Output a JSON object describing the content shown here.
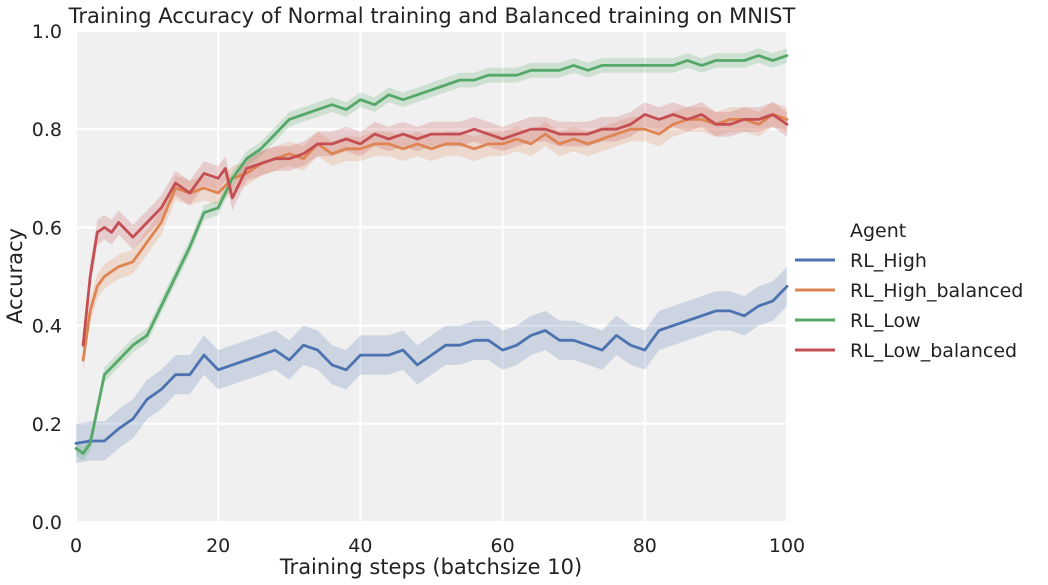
{
  "chart_data": {
    "type": "line",
    "title": "Training Accuracy of Normal training and Balanced training on MNIST",
    "xlabel": "Training steps (batchsize 10)",
    "ylabel": "Accuracy",
    "xlim": [
      0,
      100
    ],
    "ylim": [
      0,
      1
    ],
    "xticks": [
      "0",
      "20",
      "40",
      "60",
      "80",
      "100"
    ],
    "yticks": [
      "0.0",
      "0.2",
      "0.4",
      "0.6",
      "0.8",
      "1.0"
    ],
    "grid": true,
    "legend": {
      "title": "Agent",
      "placement": "outside-right"
    },
    "series": [
      {
        "name": "RL_High",
        "color": "#4c72b0",
        "x": [
          0,
          2,
          4,
          6,
          8,
          10,
          12,
          14,
          16,
          18,
          20,
          22,
          24,
          26,
          28,
          30,
          32,
          34,
          36,
          38,
          40,
          42,
          44,
          46,
          48,
          50,
          52,
          54,
          56,
          58,
          60,
          62,
          64,
          66,
          68,
          70,
          72,
          74,
          76,
          78,
          80,
          82,
          84,
          86,
          88,
          90,
          92,
          94,
          96,
          98,
          100
        ],
        "y": [
          0.16,
          0.165,
          0.165,
          0.19,
          0.21,
          0.25,
          0.27,
          0.3,
          0.3,
          0.34,
          0.31,
          0.32,
          0.33,
          0.34,
          0.35,
          0.33,
          0.36,
          0.35,
          0.32,
          0.31,
          0.34,
          0.34,
          0.34,
          0.35,
          0.32,
          0.34,
          0.36,
          0.36,
          0.37,
          0.37,
          0.35,
          0.36,
          0.38,
          0.39,
          0.37,
          0.37,
          0.36,
          0.35,
          0.38,
          0.36,
          0.35,
          0.39,
          0.4,
          0.41,
          0.42,
          0.43,
          0.43,
          0.42,
          0.44,
          0.45,
          0.48
        ],
        "ci": 0.04
      },
      {
        "name": "RL_High_balanced",
        "color": "#dd8452",
        "x": [
          1,
          2,
          3,
          4,
          6,
          8,
          10,
          12,
          14,
          16,
          18,
          20,
          22,
          24,
          26,
          28,
          30,
          32,
          34,
          36,
          38,
          40,
          42,
          44,
          46,
          48,
          50,
          52,
          54,
          56,
          58,
          60,
          62,
          64,
          66,
          68,
          70,
          72,
          74,
          76,
          78,
          80,
          82,
          84,
          86,
          88,
          90,
          92,
          94,
          96,
          98,
          100
        ],
        "y": [
          0.33,
          0.43,
          0.48,
          0.5,
          0.52,
          0.53,
          0.57,
          0.61,
          0.68,
          0.67,
          0.68,
          0.67,
          0.7,
          0.71,
          0.73,
          0.74,
          0.75,
          0.74,
          0.77,
          0.75,
          0.76,
          0.76,
          0.77,
          0.77,
          0.76,
          0.77,
          0.76,
          0.77,
          0.77,
          0.76,
          0.77,
          0.77,
          0.78,
          0.77,
          0.79,
          0.77,
          0.78,
          0.77,
          0.78,
          0.79,
          0.8,
          0.8,
          0.79,
          0.81,
          0.82,
          0.82,
          0.81,
          0.82,
          0.82,
          0.81,
          0.83,
          0.82
        ],
        "ci": 0.025
      },
      {
        "name": "RL_Low",
        "color": "#55a868",
        "x": [
          0,
          1,
          2,
          4,
          6,
          8,
          10,
          12,
          14,
          16,
          18,
          20,
          22,
          24,
          26,
          28,
          30,
          32,
          34,
          36,
          38,
          40,
          42,
          44,
          46,
          48,
          50,
          52,
          54,
          56,
          58,
          60,
          62,
          64,
          66,
          68,
          70,
          72,
          74,
          76,
          78,
          80,
          82,
          84,
          86,
          88,
          90,
          92,
          94,
          96,
          98,
          100
        ],
        "y": [
          0.15,
          0.14,
          0.16,
          0.3,
          0.33,
          0.36,
          0.38,
          0.44,
          0.5,
          0.56,
          0.63,
          0.64,
          0.7,
          0.74,
          0.76,
          0.79,
          0.82,
          0.83,
          0.84,
          0.85,
          0.84,
          0.86,
          0.85,
          0.87,
          0.86,
          0.87,
          0.88,
          0.89,
          0.9,
          0.9,
          0.91,
          0.91,
          0.91,
          0.92,
          0.92,
          0.92,
          0.93,
          0.92,
          0.93,
          0.93,
          0.93,
          0.93,
          0.93,
          0.93,
          0.94,
          0.93,
          0.94,
          0.94,
          0.94,
          0.95,
          0.94,
          0.95
        ],
        "ci": 0.015
      },
      {
        "name": "RL_Low_balanced",
        "color": "#c44e52",
        "x": [
          1,
          2,
          3,
          4,
          5,
          6,
          8,
          10,
          12,
          14,
          16,
          18,
          20,
          21,
          22,
          24,
          26,
          28,
          30,
          32,
          34,
          36,
          38,
          40,
          42,
          44,
          46,
          48,
          50,
          52,
          54,
          56,
          58,
          60,
          62,
          64,
          66,
          68,
          70,
          72,
          74,
          76,
          78,
          80,
          82,
          84,
          86,
          88,
          90,
          92,
          94,
          96,
          98,
          100
        ],
        "y": [
          0.36,
          0.5,
          0.59,
          0.6,
          0.59,
          0.61,
          0.58,
          0.61,
          0.64,
          0.69,
          0.67,
          0.71,
          0.7,
          0.72,
          0.66,
          0.72,
          0.73,
          0.74,
          0.74,
          0.75,
          0.77,
          0.77,
          0.78,
          0.77,
          0.79,
          0.78,
          0.79,
          0.78,
          0.79,
          0.79,
          0.79,
          0.8,
          0.79,
          0.78,
          0.79,
          0.8,
          0.8,
          0.79,
          0.79,
          0.79,
          0.8,
          0.8,
          0.81,
          0.83,
          0.82,
          0.83,
          0.82,
          0.83,
          0.81,
          0.81,
          0.82,
          0.82,
          0.83,
          0.81
        ],
        "ci": 0.025
      }
    ]
  }
}
